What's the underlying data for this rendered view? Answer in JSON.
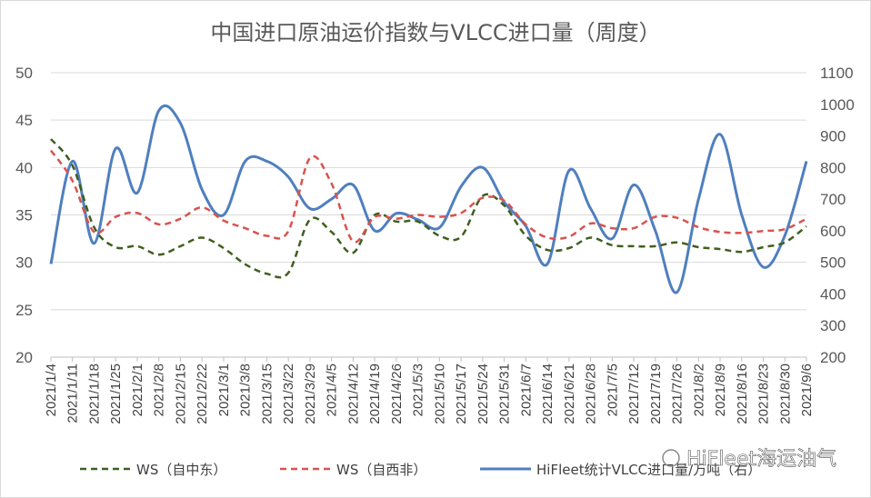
{
  "chart_data": {
    "type": "line",
    "title": "中国进口原油运价指数与VLCC进口量（周度）",
    "categories": [
      "2021/1/4",
      "2021/1/11",
      "2021/1/18",
      "2021/1/25",
      "2021/2/1",
      "2021/2/8",
      "2021/2/15",
      "2021/2/22",
      "2021/3/1",
      "2021/3/8",
      "2021/3/15",
      "2021/3/22",
      "2021/3/29",
      "2021/4/5",
      "2021/4/12",
      "2021/4/19",
      "2021/4/26",
      "2021/5/3",
      "2021/5/10",
      "2021/5/17",
      "2021/5/24",
      "2021/5/31",
      "2021/6/7",
      "2021/6/14",
      "2021/6/21",
      "2021/6/28",
      "2021/7/5",
      "2021/7/12",
      "2021/7/19",
      "2021/7/26",
      "2021/8/2",
      "2021/8/9",
      "2021/8/16",
      "2021/8/23",
      "2021/8/30",
      "2021/9/6"
    ],
    "y_left": {
      "ticks": [
        "50",
        "45",
        "40",
        "35",
        "30",
        "25",
        "20"
      ],
      "min": 20,
      "max": 50
    },
    "y_right": {
      "ticks": [
        "1100",
        "1000",
        "900",
        "800",
        "700",
        "600",
        "500",
        "400",
        "300",
        "200"
      ],
      "min": 200,
      "max": 1100
    },
    "series": [
      {
        "name": "WS（自中东）",
        "axis": "left",
        "style": "dashed",
        "color": "#3f5f1f",
        "values": [
          43,
          40.2,
          33.7,
          31.6,
          31.7,
          30.8,
          31.7,
          32.6,
          31.5,
          29.8,
          28.8,
          28.9,
          34.5,
          33.2,
          31,
          35,
          34.3,
          34.3,
          32.8,
          32.7,
          37,
          36,
          32.8,
          31.3,
          31.5,
          32.6,
          31.8,
          31.7,
          31.7,
          32.1,
          31.6,
          31.4,
          31.1,
          31.6,
          32.1,
          33.8
        ]
      },
      {
        "name": "WS（自西非）",
        "axis": "left",
        "style": "dashed",
        "color": "#d9534f",
        "values": [
          41.8,
          38.6,
          33.2,
          34.8,
          35.2,
          34,
          34.6,
          35.8,
          34.4,
          33.6,
          32.8,
          33.3,
          41,
          38.3,
          32.2,
          34.8,
          34.6,
          35,
          34.8,
          35.2,
          36.8,
          36.5,
          34,
          32.6,
          32.7,
          34.1,
          33.6,
          33.6,
          34.8,
          34.7,
          33.7,
          33.2,
          33.1,
          33.3,
          33.5,
          34.6
        ]
      },
      {
        "name": "HiFleet统计VLCC进口量/万吨（右）",
        "axis": "right",
        "style": "solid",
        "color": "#4f7fbf",
        "values": [
          495,
          820,
          560,
          860,
          720,
          980,
          940,
          730,
          650,
          820,
          820,
          770,
          670,
          700,
          745,
          600,
          655,
          635,
          610,
          740,
          800,
          690,
          615,
          495,
          790,
          670,
          575,
          745,
          600,
          405,
          700,
          905,
          650,
          485,
          585,
          820
        ]
      }
    ]
  },
  "watermark": "HiFleet海运油气"
}
